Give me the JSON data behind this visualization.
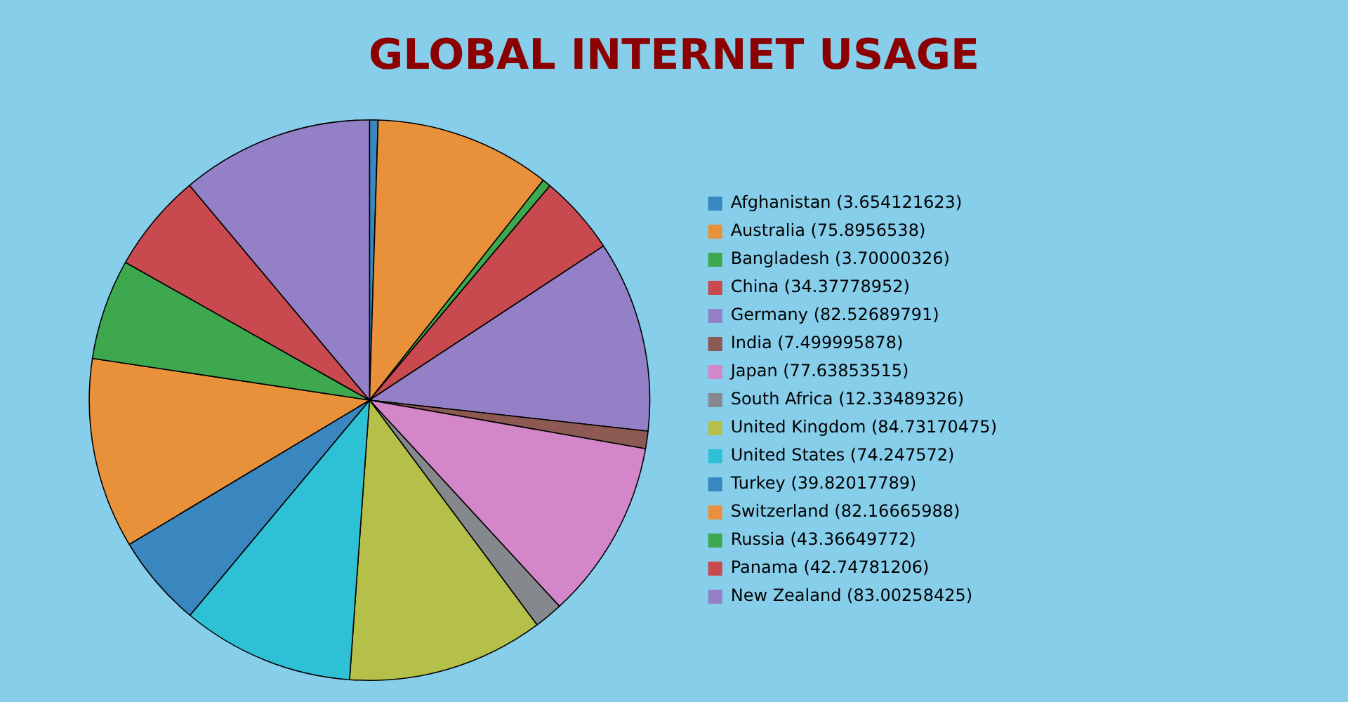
{
  "chart_data": {
    "type": "pie",
    "title": "GLOBAL INTERNET USAGE",
    "categories": [
      "Afghanistan (3.654121623)",
      "Australia (75.8956538)",
      "Bangladesh (3.70000326)",
      "China (34.37778952)",
      "Germany (82.52689791)",
      "India (7.499995878)",
      "Japan (77.63853515)",
      "South Africa (12.33489326)",
      "United Kingdom (84.73170475)",
      "United States (74.247572)",
      "Turkey (39.82017789)",
      "Switzerland (82.16665988)",
      "Russia (43.36649772)",
      "Panama (42.74781206)",
      "New Zealand (83.00258425)"
    ],
    "values": [
      3.654121623,
      75.8956538,
      3.70000326,
      34.37778952,
      82.52689791,
      7.499995878,
      77.63853515,
      12.33489326,
      84.73170475,
      74.247572,
      39.82017789,
      82.16665988,
      43.36649772,
      42.74781206,
      83.00258425
    ],
    "colors": [
      "#3a87c0",
      "#e8913a",
      "#3ea84f",
      "#c84a4e",
      "#9380c6",
      "#8c5a52",
      "#d386c8",
      "#85898e",
      "#b5c04a",
      "#2ec0d4",
      "#3a87c0",
      "#e8913a",
      "#3ea84f",
      "#c84a4e",
      "#9380c6"
    ],
    "legend": "right"
  }
}
